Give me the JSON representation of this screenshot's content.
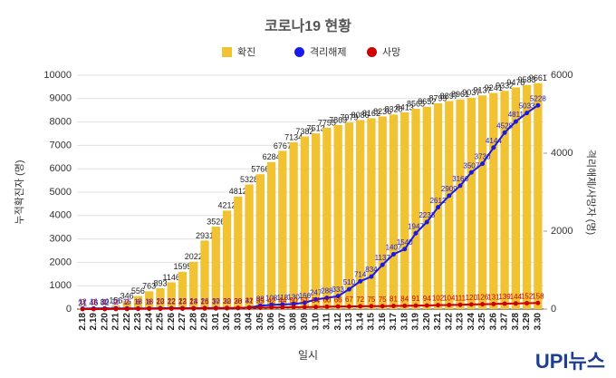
{
  "chart_data": {
    "type": "bar-line",
    "title": "코로나19 현황",
    "x_label": "일시",
    "y_label": "누적확진자 (명)",
    "y2_label": "격리해제/사망자 (명)",
    "categories": [
      "2.18",
      "2.19",
      "2.20",
      "2.21",
      "2.22",
      "2.23",
      "2.24",
      "2.25",
      "2.26",
      "2.27",
      "2.28",
      "2.29",
      "3.01",
      "3.02",
      "3.03",
      "3.04",
      "3.05",
      "3.06",
      "3.07",
      "3.08",
      "3.09",
      "3.10",
      "3.11",
      "3.12",
      "3.13",
      "3.14",
      "3.15",
      "3.16",
      "3.17",
      "3.18",
      "3.19",
      "3.20",
      "3.21",
      "3.22",
      "3.23",
      "3.24",
      "3.25",
      "3.26",
      "3.27",
      "3.28",
      "3.29",
      "3.30"
    ],
    "series": [
      {
        "name": "확진",
        "color": "#f1c232",
        "axis": "y",
        "values": [
          31,
          46,
          82,
          156,
          346,
          556,
          763,
          893,
          1146,
          1595,
          2022,
          2931,
          3526,
          4212,
          4812,
          5328,
          5766,
          6284,
          6767,
          7134,
          7382,
          7513,
          7755,
          7869,
          7979,
          8086,
          8162,
          8236,
          8320,
          8413,
          8565,
          8652,
          8799,
          8897,
          8961,
          9037,
          9137,
          9241,
          9332,
          9478,
          9583,
          9661
        ]
      },
      {
        "name": "격리해제",
        "color": "#1a1ae6",
        "axis": "y2",
        "values": [
          12,
          16,
          16,
          16,
          16,
          18,
          18,
          22,
          22,
          22,
          24,
          26,
          30,
          30,
          30,
          41,
          88,
          108,
          118,
          130,
          166,
          247,
          288,
          333,
          510,
          714,
          834,
          1137,
          1407,
          1540,
          1947,
          2233,
          2612,
          2909,
          3166,
          3507,
          3730,
          4144,
          4528,
          4811,
          5033,
          5228
        ]
      },
      {
        "name": "사망",
        "color": "#cc0000",
        "axis": "y2",
        "values": [
          0,
          0,
          1,
          2,
          2,
          6,
          8,
          10,
          12,
          13,
          13,
          16,
          17,
          22,
          28,
          32,
          35,
          42,
          44,
          50,
          51,
          54,
          60,
          66,
          67,
          72,
          75,
          75,
          81,
          84,
          91,
          94,
          102,
          104,
          111,
          120,
          126,
          131,
          139,
          144,
          152,
          158
        ]
      }
    ],
    "ylim": [
      0,
      10000
    ],
    "yticks": [
      0,
      1000,
      2000,
      3000,
      4000,
      5000,
      6000,
      7000,
      8000,
      9000,
      10000
    ],
    "y2lim": [
      0,
      6000
    ],
    "y2ticks": [
      0,
      2000,
      4000,
      6000
    ],
    "grid": true,
    "legend": "top",
    "logo": "UPI뉴스"
  }
}
